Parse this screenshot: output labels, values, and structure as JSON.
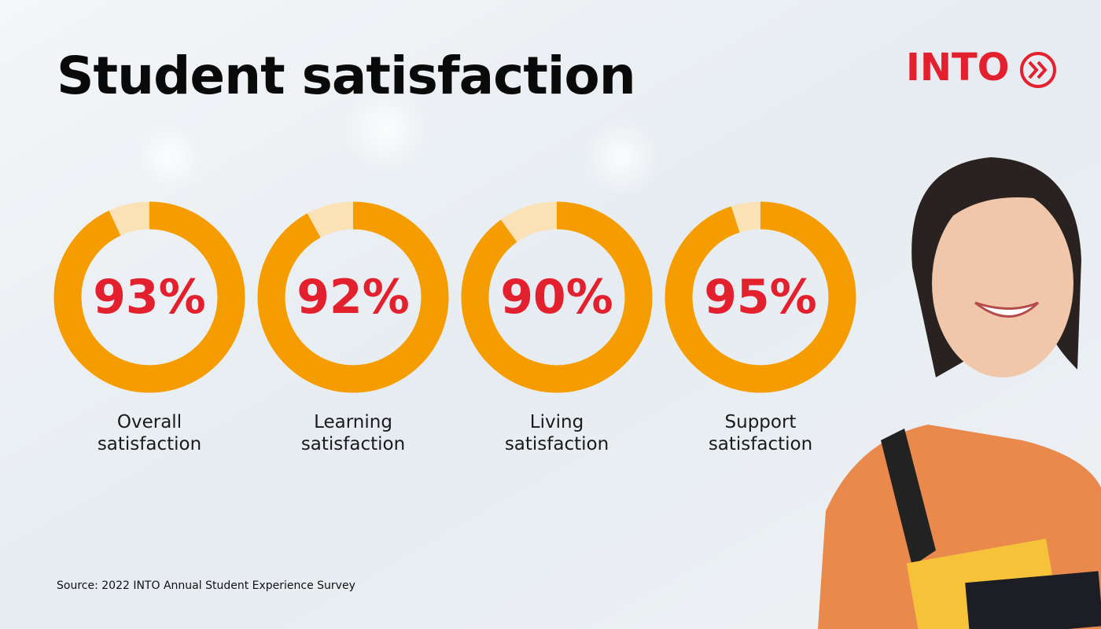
{
  "chart_data": {
    "type": "donut",
    "title": "Student satisfaction",
    "categories": [
      "Overall satisfaction",
      "Learning satisfaction",
      "Living satisfaction",
      "Support satisfaction"
    ],
    "values": [
      93,
      92,
      90,
      95
    ],
    "value_labels": [
      "93%",
      "92%",
      "90%",
      "95%"
    ],
    "ylim": [
      0,
      100
    ],
    "color": "#f59c00",
    "remainder_color": "#fbe2b6",
    "label_color": "#e3202e",
    "source": "Source: 2022 INTO Annual Student Experience Survey",
    "logo": "INTO"
  }
}
